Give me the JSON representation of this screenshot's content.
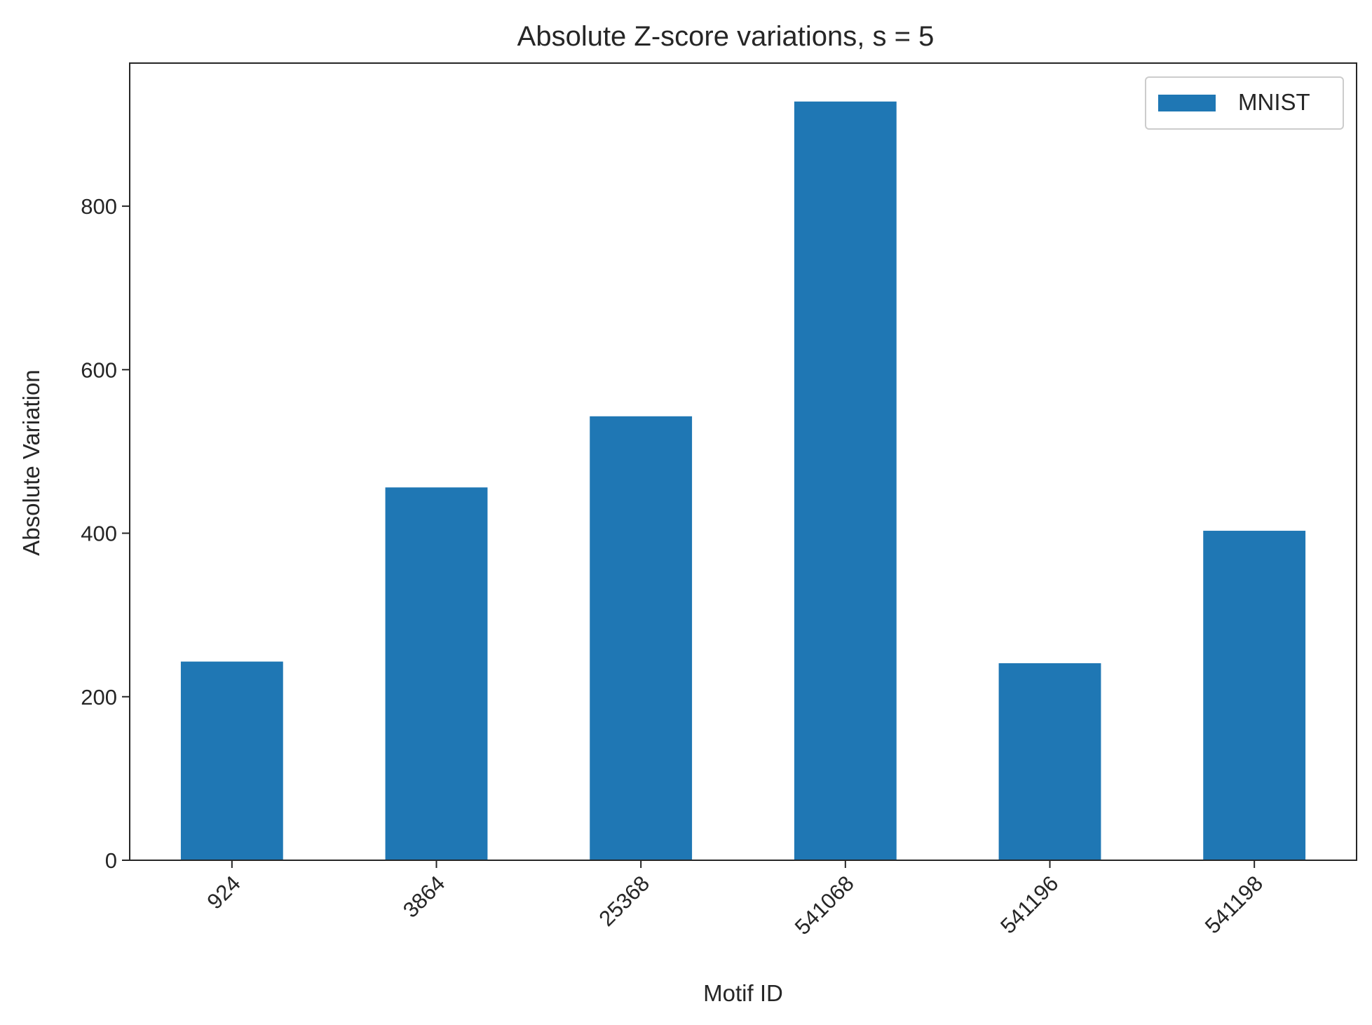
{
  "colors": {
    "bar": "#1f77b4",
    "axis": "#262626",
    "legend_border": "#cccccc"
  },
  "chart_data": {
    "type": "bar",
    "title": "Absolute Z-score variations, s = 5",
    "xlabel": "Motif ID",
    "ylabel": "Absolute Variation",
    "categories": [
      "924",
      "3864",
      "25368",
      "541068",
      "541196",
      "541198"
    ],
    "series": [
      {
        "name": "MNIST",
        "values": [
          243,
          456,
          543,
          928,
          241,
          403
        ]
      }
    ],
    "yticks": [
      0,
      200,
      400,
      600,
      800
    ],
    "ylim": [
      0,
      975
    ],
    "grid": false,
    "legend_position": "top-right",
    "xtick_rotation_deg": 45
  }
}
